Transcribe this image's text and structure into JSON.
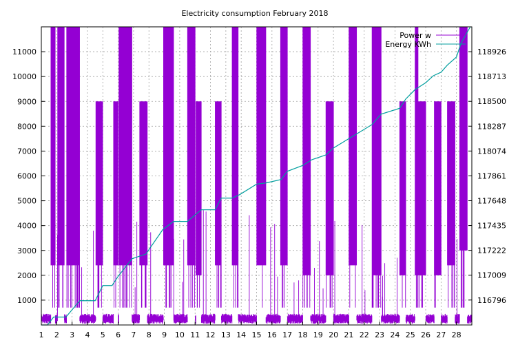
{
  "chart_data": {
    "type": "line",
    "title": "Electricity consumption February 2018",
    "xlabel": "",
    "ylabel": "",
    "y2label": "",
    "grid": true,
    "legend_position": "top-right",
    "x_ticks": [
      "1",
      "2",
      "3",
      "4",
      "5",
      "6",
      "7",
      "8",
      "9",
      "10",
      "11",
      "12",
      "13",
      "14",
      "15",
      "16",
      "17",
      "18",
      "19",
      "20",
      "21",
      "22",
      "23",
      "24",
      "25",
      "26",
      "27",
      "28"
    ],
    "xlim": [
      1,
      29
    ],
    "ylim": [
      0,
      12000
    ],
    "y_ticks": [
      "1000",
      "2000",
      "3000",
      "4000",
      "5000",
      "6000",
      "7000",
      "8000",
      "9000",
      "10000",
      "11000"
    ],
    "y2lim": [
      116582,
      119139
    ],
    "y2_ticks": [
      "116796",
      "117009",
      "117222",
      "117435",
      "117648",
      "117861",
      "118074",
      "118287",
      "118500",
      "118713",
      "118926"
    ],
    "series": [
      {
        "name": "Power w",
        "axis": "left",
        "color": "#9400d3",
        "style": "dense-oscillation",
        "baseline": 300,
        "segments": [
          {
            "x": [
              1.62,
              1.9
            ],
            "low": 2400,
            "high": 12000
          },
          {
            "x": [
              2.05,
              2.5
            ],
            "low": 2400,
            "high": 12000
          },
          {
            "x": [
              2.65,
              3.5
            ],
            "low": 2400,
            "high": 12000
          },
          {
            "x": [
              4.55,
              5.0
            ],
            "low": 2400,
            "high": 9000
          },
          {
            "x": [
              5.7,
              6.0
            ],
            "low": 2400,
            "high": 9000
          },
          {
            "x": [
              6.05,
              6.9
            ],
            "low": 2400,
            "high": 12000
          },
          {
            "x": [
              7.4,
              7.9
            ],
            "low": 2400,
            "high": 9000
          },
          {
            "x": [
              8.95,
              9.6
            ],
            "low": 2400,
            "high": 12000
          },
          {
            "x": [
              10.5,
              11.0
            ],
            "low": 2400,
            "high": 12000
          },
          {
            "x": [
              11.05,
              11.4
            ],
            "low": 2000,
            "high": 9000
          },
          {
            "x": [
              12.3,
              12.7
            ],
            "low": 2400,
            "high": 9000
          },
          {
            "x": [
              13.4,
              13.8
            ],
            "low": 2400,
            "high": 12000
          },
          {
            "x": [
              15.0,
              15.6
            ],
            "low": 2400,
            "high": 12000
          },
          {
            "x": [
              16.55,
              17.0
            ],
            "low": 2400,
            "high": 12000
          },
          {
            "x": [
              18.0,
              18.5
            ],
            "low": 2000,
            "high": 12000
          },
          {
            "x": [
              19.5,
              20.0
            ],
            "low": 2000,
            "high": 9000
          },
          {
            "x": [
              21.0,
              21.5
            ],
            "low": 2400,
            "high": 12000
          },
          {
            "x": [
              22.5,
              23.1
            ],
            "low": 2000,
            "high": 12000
          },
          {
            "x": [
              24.3,
              24.7
            ],
            "low": 2000,
            "high": 9000
          },
          {
            "x": [
              25.3,
              25.5
            ],
            "low": 2000,
            "high": 12000
          },
          {
            "x": [
              25.5,
              26.0
            ],
            "low": 2000,
            "high": 9000
          },
          {
            "x": [
              26.55,
              27.0
            ],
            "low": 2000,
            "high": 9000
          },
          {
            "x": [
              27.4,
              27.9
            ],
            "low": 2400,
            "high": 9000
          },
          {
            "x": [
              28.2,
              28.7
            ],
            "low": 3000,
            "high": 12000
          }
        ]
      },
      {
        "name": "Energy KWh",
        "axis": "right",
        "color": "#009e9e",
        "style": "line",
        "x": [
          1,
          1.4,
          1.8,
          2.6,
          3.5,
          4.5,
          5.0,
          5.6,
          6.0,
          6.9,
          7.8,
          8.9,
          9.6,
          10.5,
          11.4,
          12.3,
          12.7,
          13.4,
          13.9,
          15.0,
          15.6,
          16.6,
          17.0,
          18.0,
          18.6,
          19.5,
          20.0,
          21.0,
          21.5,
          22.5,
          23.1,
          24.3,
          24.7,
          25.3,
          26.0,
          26.5,
          27.0,
          27.4,
          28.0,
          28.3,
          28.9
        ],
        "values": [
          116582,
          116582,
          116650,
          116650,
          116790,
          116790,
          116920,
          116920,
          117000,
          117150,
          117190,
          117400,
          117470,
          117470,
          117570,
          117570,
          117670,
          117670,
          117700,
          117790,
          117800,
          117830,
          117900,
          117950,
          118000,
          118040,
          118100,
          118180,
          118220,
          118300,
          118390,
          118440,
          118520,
          118600,
          118660,
          118720,
          118750,
          118810,
          118880,
          119000,
          119139
        ]
      }
    ]
  }
}
